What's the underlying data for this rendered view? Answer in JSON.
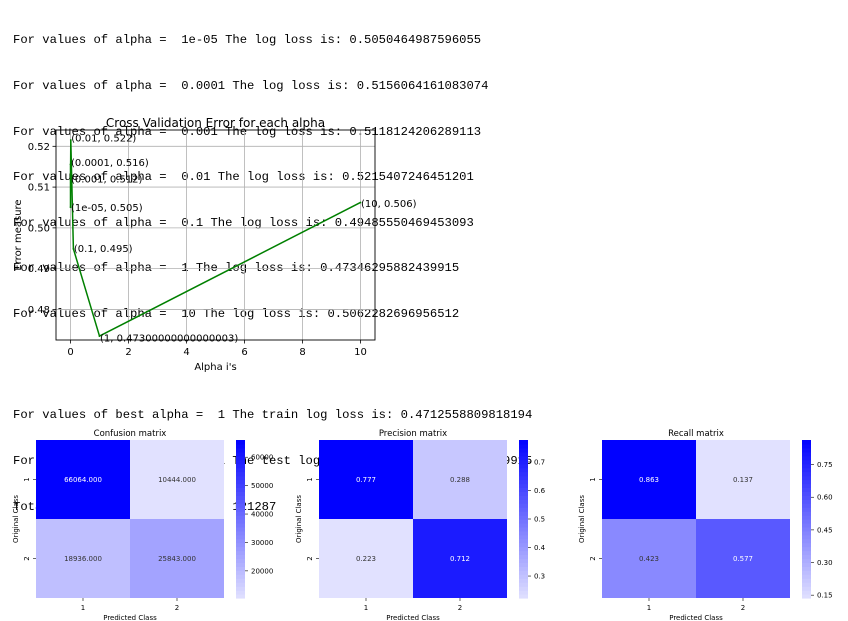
{
  "log_top": [
    "For values of alpha =  1e-05 The log loss is: 0.5050464987596055",
    "For values of alpha =  0.0001 The log loss is: 0.5156064161083074",
    "For values of alpha =  0.001 The log loss is: 0.5118124206289113",
    "For values of alpha =  0.01 The log loss is: 0.5215407246451201",
    "For values of alpha =  0.1 The log loss is: 0.49485550469453093",
    "For values of alpha =  1 The log loss is: 0.47346295882439915",
    "For values of alpha =  10 The log loss is: 0.5062282696956512"
  ],
  "log_bottom": [
    "For values of best alpha =  1 The train log loss is: 0.4712558809818194",
    "For values of best alpha =  1 The test log loss is: 0.47346295882439915",
    "Total number of data points : 121287"
  ],
  "chart_data": [
    {
      "type": "line",
      "title": "Cross Validation Error for each alpha",
      "xlabel": "Alpha i's",
      "ylabel": "Error measure",
      "color": "#008000",
      "xlim": [
        -0.5,
        10.5
      ],
      "ylim": [
        0.4725,
        0.524
      ],
      "grid": true,
      "x": [
        1e-05,
        0.0001,
        0.001,
        0.01,
        0.1,
        1,
        10
      ],
      "y": [
        0.5050464987596055,
        0.5156064161083074,
        0.5118124206289113,
        0.5215407246451201,
        0.49485550469453093,
        0.47346295882439915,
        0.5062282696956512
      ],
      "xticks": [
        "0",
        "2",
        "4",
        "6",
        "8",
        "10"
      ],
      "yticks": [
        "0.48",
        "0.49",
        "0.50",
        "0.51",
        "0.52"
      ],
      "annotations": [
        "(1e-05, 0.505)",
        "(0.0001, 0.516)",
        "(0.001, 0.512)",
        "(0.01, 0.522)",
        "(0.1, 0.495)",
        "(1, 0.47300000000000003)",
        "(10, 0.506)"
      ]
    },
    {
      "type": "heatmap",
      "title": "Confusion matrix",
      "xlabel": "Predicted Class",
      "ylabel": "Original Class",
      "xticks": [
        "1",
        "2"
      ],
      "yticks": [
        "1",
        "2"
      ],
      "values": [
        [
          66064.0,
          10444.0
        ],
        [
          18936.0,
          25843.0
        ]
      ],
      "cell_labels": [
        [
          "66064.000",
          "10444.000"
        ],
        [
          "18936.000",
          "25843.000"
        ]
      ],
      "vmin": 10444.0,
      "vmax": 66064.0,
      "colorbar_ticks": [
        20000,
        30000,
        40000,
        50000,
        60000
      ],
      "colorbar_labels": [
        "20000",
        "30000",
        "40000",
        "50000",
        "60000"
      ]
    },
    {
      "type": "heatmap",
      "title": "Precision matrix",
      "xlabel": "Predicted Class",
      "ylabel": "Original Class",
      "xticks": [
        "1",
        "2"
      ],
      "yticks": [
        "1",
        "2"
      ],
      "values": [
        [
          0.777,
          0.288
        ],
        [
          0.223,
          0.712
        ]
      ],
      "cell_labels": [
        [
          "0.777",
          "0.288"
        ],
        [
          "0.223",
          "0.712"
        ]
      ],
      "vmin": 0.223,
      "vmax": 0.777,
      "colorbar_ticks": [
        0.3,
        0.4,
        0.5,
        0.6,
        0.7
      ],
      "colorbar_labels": [
        "0.3",
        "0.4",
        "0.5",
        "0.6",
        "0.7"
      ]
    },
    {
      "type": "heatmap",
      "title": "Recall matrix",
      "xlabel": "Predicted Class",
      "ylabel": "Original Class",
      "xticks": [
        "1",
        "2"
      ],
      "yticks": [
        "1",
        "2"
      ],
      "values": [
        [
          0.863,
          0.137
        ],
        [
          0.423,
          0.577
        ]
      ],
      "cell_labels": [
        [
          "0.863",
          "0.137"
        ],
        [
          "0.423",
          "0.577"
        ]
      ],
      "vmin": 0.137,
      "vmax": 0.863,
      "colorbar_ticks": [
        0.15,
        0.3,
        0.45,
        0.6,
        0.75
      ],
      "colorbar_labels": [
        "0.15",
        "0.30",
        "0.45",
        "0.60",
        "0.75"
      ]
    }
  ]
}
